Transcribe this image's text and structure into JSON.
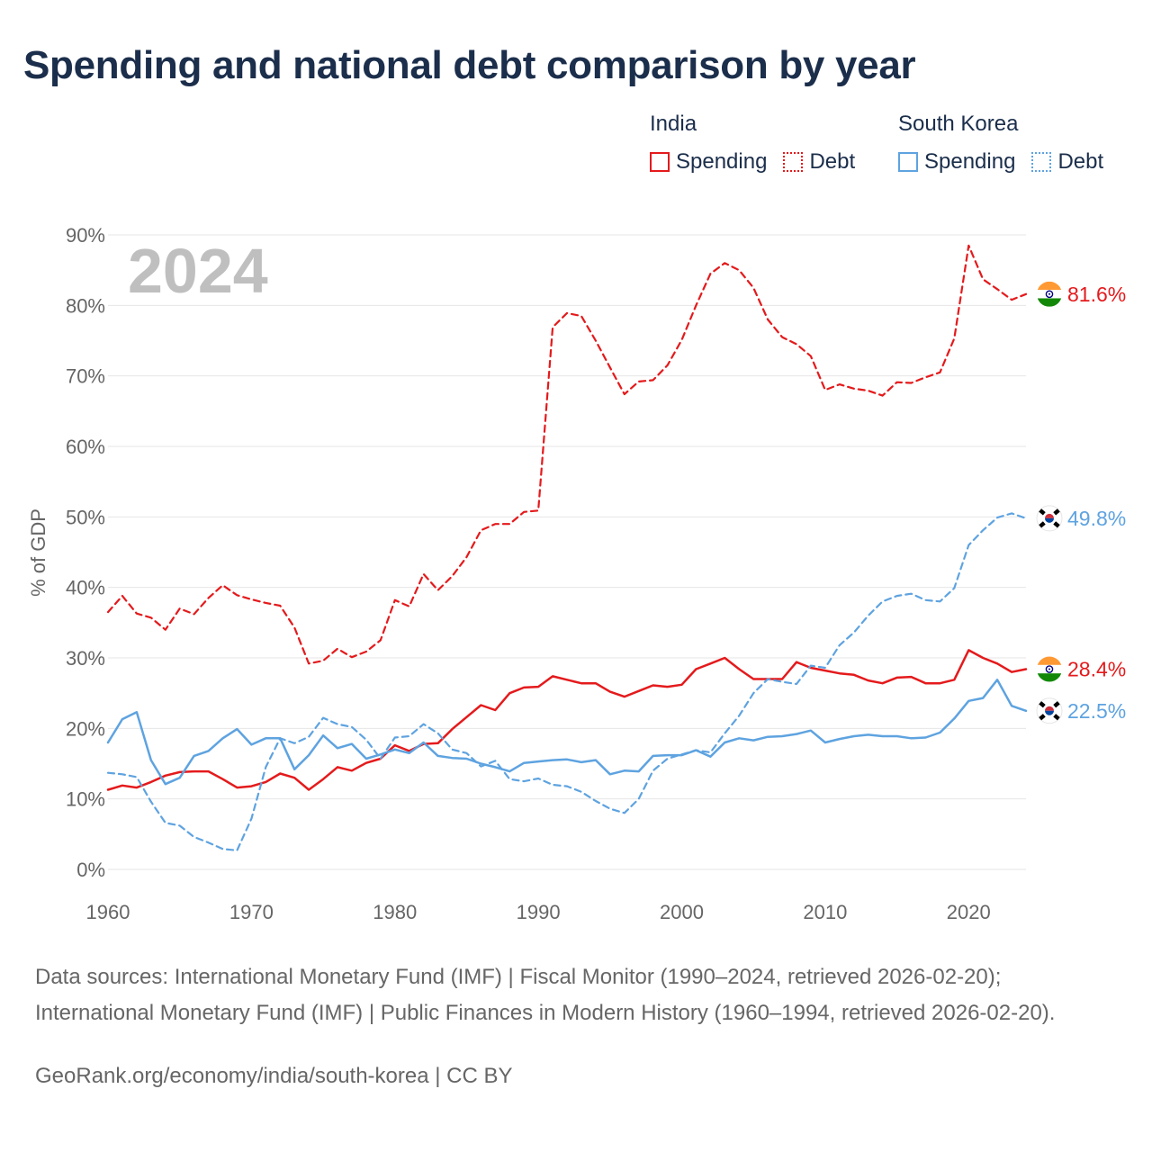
{
  "title": "Spending and national debt comparison by year",
  "legend": {
    "india": {
      "country": "India",
      "spending": "Spending",
      "debt": "Debt"
    },
    "korea": {
      "country": "South Korea",
      "spending": "Spending",
      "debt": "Debt"
    }
  },
  "footer": {
    "sources": "Data sources: International Monetary Fund (IMF) | Fiscal Monitor (1990–2024, retrieved 2026-02-20); International Monetary Fund (IMF) | Public Finances in Modern History (1960–1994, retrieved 2026-02-20).",
    "credit": "GeoRank.org/economy/india/south-korea | CC BY"
  },
  "colors": {
    "india": "#e41a1c",
    "korea": "#5ea3e0",
    "year_watermark": "#bfbfbf",
    "grid": "#e6e6e6"
  },
  "chart_data": {
    "type": "line",
    "year_label": "2024",
    "ylabel": "% of GDP",
    "xlim": [
      1960,
      2024
    ],
    "ylim": [
      0,
      90
    ],
    "x_ticks": [
      "1960",
      "1970",
      "1980",
      "1990",
      "2000",
      "2010",
      "2020"
    ],
    "y_ticks": [
      "0%",
      "10%",
      "20%",
      "30%",
      "40%",
      "50%",
      "60%",
      "70%",
      "80%",
      "90%"
    ],
    "x": [
      1960,
      1961,
      1962,
      1963,
      1964,
      1965,
      1966,
      1967,
      1968,
      1969,
      1970,
      1971,
      1972,
      1973,
      1974,
      1975,
      1976,
      1977,
      1978,
      1979,
      1980,
      1981,
      1982,
      1983,
      1984,
      1985,
      1986,
      1987,
      1988,
      1989,
      1990,
      1991,
      1992,
      1993,
      1994,
      1995,
      1996,
      1997,
      1998,
      1999,
      2000,
      2001,
      2002,
      2003,
      2004,
      2005,
      2006,
      2007,
      2008,
      2009,
      2010,
      2011,
      2012,
      2013,
      2014,
      2015,
      2016,
      2017,
      2018,
      2019,
      2020,
      2021,
      2022,
      2023,
      2024
    ],
    "series": [
      {
        "name": "India Spending",
        "country": "india",
        "style": "solid",
        "end_label": "28.4%",
        "flag": "india",
        "values": [
          11.3,
          11.9,
          11.6,
          12.4,
          13.3,
          13.8,
          13.9,
          13.9,
          12.8,
          11.6,
          11.8,
          12.4,
          13.6,
          13.0,
          11.3,
          12.8,
          14.5,
          14.0,
          15.1,
          15.7,
          17.6,
          16.8,
          17.8,
          17.9,
          19.9,
          21.6,
          23.3,
          22.6,
          25.0,
          25.8,
          25.9,
          27.4,
          26.9,
          26.4,
          26.4,
          25.2,
          24.5,
          25.3,
          26.1,
          25.9,
          26.2,
          28.4,
          29.2,
          30.0,
          28.4,
          27.0,
          27.0,
          27.0,
          29.4,
          28.6,
          28.2,
          27.8,
          27.6,
          26.8,
          26.4,
          27.2,
          27.3,
          26.4,
          26.4,
          26.9,
          31.1,
          30.0,
          29.2,
          28.0,
          28.4
        ]
      },
      {
        "name": "India Debt",
        "country": "india",
        "style": "dashed",
        "end_label": "81.6%",
        "flag": "india",
        "values": [
          36.5,
          38.8,
          36.3,
          35.7,
          34.0,
          37.0,
          36.2,
          38.5,
          40.3,
          38.9,
          38.3,
          37.8,
          37.4,
          34.3,
          29.2,
          29.6,
          31.3,
          30.1,
          30.9,
          32.5,
          38.2,
          37.3,
          41.9,
          39.6,
          41.6,
          44.3,
          48.1,
          49.0,
          49.0,
          50.7,
          50.9,
          76.9,
          78.9,
          78.5,
          75.0,
          71.2,
          67.4,
          69.2,
          69.4,
          71.5,
          75.1,
          80.0,
          84.5,
          86.0,
          85.0,
          82.5,
          78.0,
          75.5,
          74.5,
          72.8,
          68.0,
          68.8,
          68.2,
          67.9,
          67.2,
          69.1,
          69.0,
          69.8,
          70.5,
          75.3,
          88.5,
          83.7,
          82.3,
          80.8,
          81.6
        ]
      },
      {
        "name": "South Korea Spending",
        "country": "korea",
        "style": "solid",
        "end_label": "22.5%",
        "flag": "korea",
        "values": [
          18.0,
          21.3,
          22.3,
          15.5,
          12.1,
          13.0,
          16.1,
          16.8,
          18.6,
          19.9,
          17.7,
          18.6,
          18.6,
          14.2,
          16.2,
          19.0,
          17.2,
          17.8,
          15.7,
          16.3,
          17.0,
          16.5,
          18.0,
          16.1,
          15.8,
          15.7,
          15.0,
          14.5,
          13.9,
          15.1,
          15.3,
          15.5,
          15.6,
          15.2,
          15.5,
          13.5,
          14.0,
          13.9,
          16.1,
          16.2,
          16.2,
          16.9,
          16.0,
          18.0,
          18.6,
          18.3,
          18.8,
          18.9,
          19.2,
          19.7,
          18.0,
          18.5,
          18.9,
          19.1,
          18.9,
          18.9,
          18.6,
          18.7,
          19.4,
          21.4,
          23.9,
          24.3,
          26.9,
          23.2,
          22.5
        ]
      },
      {
        "name": "South Korea Debt",
        "country": "korea",
        "style": "dashed",
        "end_label": "49.8%",
        "flag": "korea",
        "values": [
          13.7,
          13.5,
          13.1,
          9.6,
          6.6,
          6.2,
          4.6,
          3.8,
          2.9,
          2.7,
          7.2,
          14.5,
          18.6,
          17.9,
          18.8,
          21.5,
          20.6,
          20.2,
          18.4,
          15.7,
          18.7,
          18.9,
          20.6,
          19.3,
          17.0,
          16.5,
          14.6,
          15.4,
          12.8,
          12.5,
          12.9,
          12.0,
          11.8,
          11.0,
          9.7,
          8.6,
          8.0,
          10.0,
          14.0,
          15.7,
          16.3,
          16.9,
          16.6,
          19.3,
          21.8,
          25.0,
          27.0,
          26.6,
          26.3,
          28.9,
          28.6,
          31.8,
          33.6,
          36.0,
          38.0,
          38.8,
          39.1,
          38.2,
          38.0,
          39.9,
          46.0,
          48.1,
          49.9,
          50.5,
          49.8
        ]
      }
    ]
  }
}
